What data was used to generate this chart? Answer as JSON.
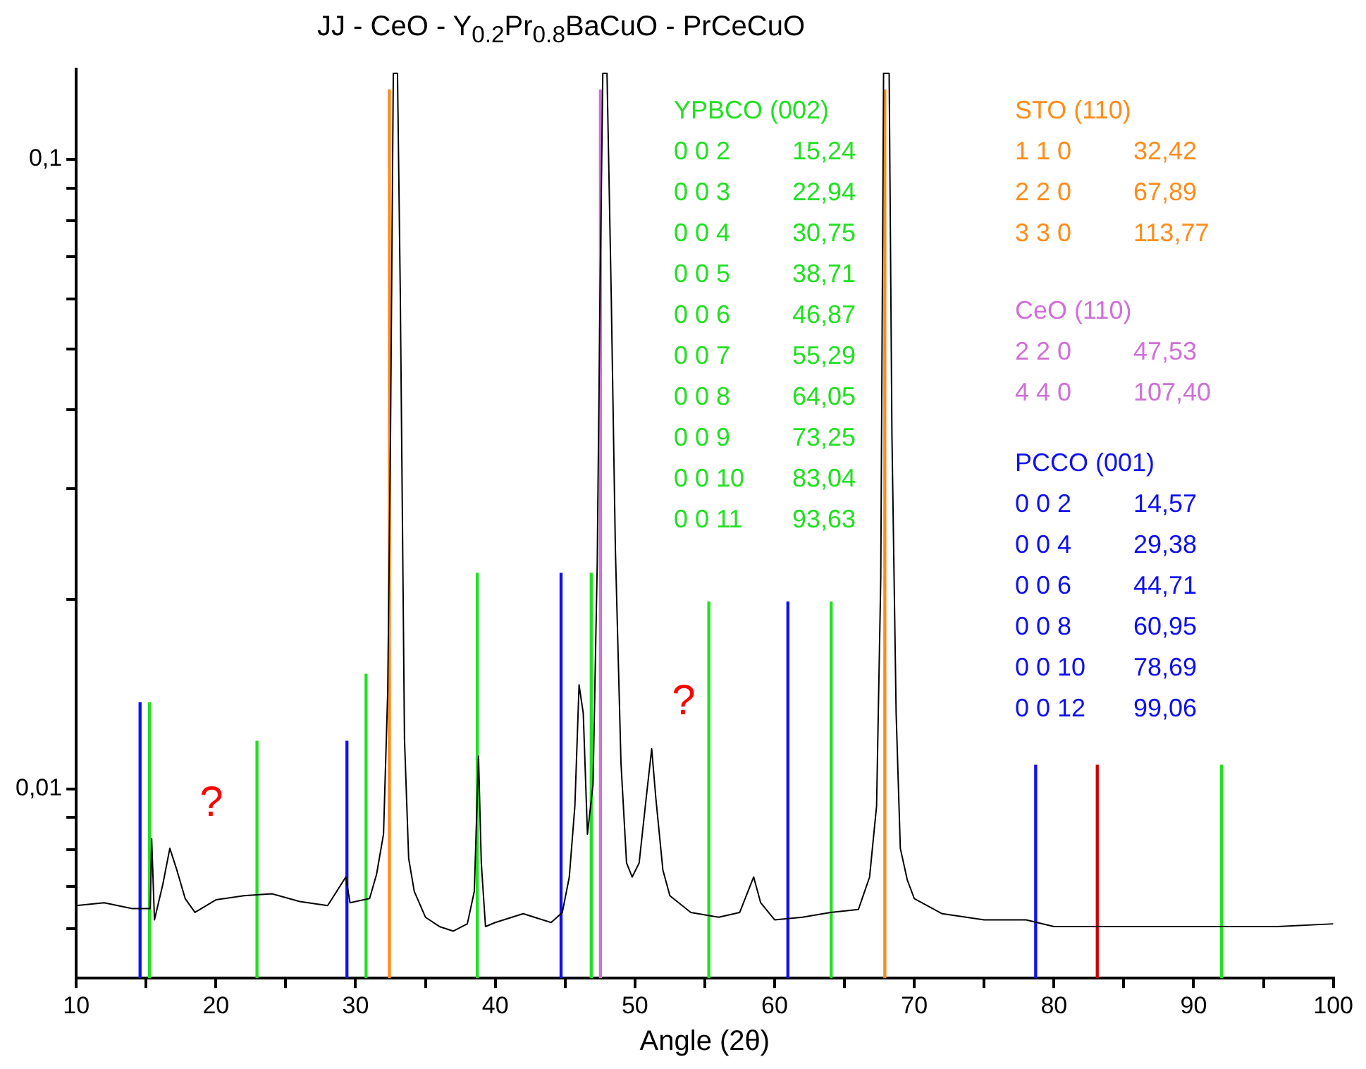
{
  "chart_data": {
    "type": "line",
    "title": "JJ - CeO - Y$_{0.2}$Pr$_{0.8}$BaCuO - PrCeCuO",
    "xlabel": "Angle (2θ)",
    "log": "y",
    "grid": false,
    "legend": false,
    "marker": "none",
    "xlim": [
      10,
      100
    ],
    "xticks": [
      10,
      {
        "value": 15,
        "label": null
      },
      20,
      {
        "value": 25,
        "label": null
      },
      30,
      {
        "value": 35,
        "label": null
      },
      40,
      {
        "value": 45,
        "label": null
      },
      50,
      {
        "value": 55,
        "label": null
      },
      60,
      {
        "value": 65,
        "label": null
      },
      70,
      {
        "value": 75,
        "label": null
      },
      80,
      {
        "value": 85,
        "label": null
      },
      90,
      {
        "value": 95,
        "label": null
      },
      100
    ],
    "ylim": [
      0.005,
      0.139
    ],
    "yticks": [
      {
        "value": 0.006,
        "label": null
      },
      {
        "value": 0.007,
        "label": null
      },
      {
        "value": 0.008,
        "label": null
      },
      {
        "value": 0.009,
        "label": null
      },
      {
        "value": 0.01,
        "label": "0,01"
      },
      {
        "value": 0.02,
        "label": null
      },
      {
        "value": 0.03,
        "label": null
      },
      {
        "value": 0.04,
        "label": null
      },
      {
        "value": 0.05,
        "label": null
      },
      {
        "value": 0.06,
        "label": null
      },
      {
        "value": 0.07,
        "label": null
      },
      {
        "value": 0.08,
        "label": null
      },
      {
        "value": 0.09,
        "label": null
      },
      {
        "value": 0.1,
        "label": "0,1"
      }
    ],
    "series": [
      {
        "name": "YPBCO (002)",
        "type": "bar",
        "color": "#22e022",
        "x": [
          15.24,
          22.94,
          30.75,
          38.71,
          46.87,
          55.29,
          64.05,
          92.0
        ],
        "values": [
          0.0137,
          0.0119,
          0.0152,
          0.022,
          0.022,
          0.0198,
          0.0198,
          0.0109
        ]
      },
      {
        "name": "STO (110)",
        "type": "bar",
        "color": "#ff8c1a",
        "x": [
          32.42,
          67.89
        ],
        "values": [
          0.129,
          0.129
        ]
      },
      {
        "name": "CeO (110)",
        "type": "bar",
        "color": "#d070d8",
        "x": [
          47.53
        ],
        "values": [
          0.129
        ]
      },
      {
        "name": "PCCO (001)",
        "type": "bar",
        "color": "#1010f0",
        "x": [
          14.57,
          29.38,
          44.71,
          60.95,
          78.69
        ],
        "values": [
          0.0137,
          0.0119,
          0.022,
          0.0198,
          0.0109
        ]
      },
      {
        "type": "bar",
        "color": "#cc0000",
        "x": [
          83.1
        ],
        "values": [
          0.0109
        ]
      },
      {
        "color": "#000000",
        "x": [
          10,
          12,
          14,
          15.3,
          15.4,
          15.6,
          16.2,
          16.7,
          17.2,
          17.8,
          18.5,
          20,
          22,
          24,
          26,
          28,
          29.3,
          29.6,
          31,
          31.5,
          32,
          32.3,
          32.5,
          32.7,
          33.0,
          33.2,
          33.5,
          33.8,
          34.2,
          35,
          36,
          37,
          38,
          38.5,
          38.8,
          39.0,
          39.3,
          40,
          42,
          44,
          44.8,
          45.3,
          45.7,
          46.0,
          46.3,
          46.6,
          47.0,
          47.3,
          47.5,
          47.7,
          48.0,
          48.3,
          48.6,
          49,
          49.4,
          49.8,
          50.3,
          50.8,
          51.2,
          51.5,
          52,
          52.5,
          54,
          56,
          57.5,
          58.5,
          59,
          60,
          62,
          64,
          66,
          66.8,
          67.3,
          67.6,
          67.8,
          68.2,
          68.4,
          68.7,
          69.0,
          69.5,
          70,
          72,
          75,
          78,
          80,
          84,
          88,
          92,
          96,
          100
        ],
        "values": [
          0.00652,
          0.00659,
          0.00645,
          0.00645,
          0.00833,
          0.00619,
          0.00705,
          0.00804,
          0.00743,
          0.00669,
          0.00636,
          0.00666,
          0.00676,
          0.00681,
          0.00662,
          0.00652,
          0.00724,
          0.00659,
          0.00669,
          0.00731,
          0.00847,
          0.01426,
          0.0364,
          0.137,
          0.137,
          0.0612,
          0.012,
          0.00775,
          0.00687,
          0.00625,
          0.00604,
          0.00594,
          0.0061,
          0.00687,
          0.01127,
          0.00762,
          0.00604,
          0.00613,
          0.00633,
          0.00613,
          0.00636,
          0.00724,
          0.00939,
          0.01462,
          0.01318,
          0.00847,
          0.01016,
          0.02276,
          0.0612,
          0.137,
          0.137,
          0.0612,
          0.02398,
          0.01099,
          0.00762,
          0.00724,
          0.00762,
          0.00964,
          0.01157,
          0.00964,
          0.00743,
          0.00676,
          0.00636,
          0.00625,
          0.00636,
          0.00724,
          0.00659,
          0.00619,
          0.00625,
          0.00636,
          0.00643,
          0.00724,
          0.00939,
          0.0216,
          0.137,
          0.137,
          0.0364,
          0.01318,
          0.00804,
          0.00716,
          0.00669,
          0.00633,
          0.00619,
          0.00619,
          0.00604,
          0.00604,
          0.00604,
          0.00604,
          0.00604,
          0.0061
        ]
      }
    ],
    "annotations": [
      "0 0 2\t15,24\n0 0 3\t22,94\n0 0 4\t30,75\n0 0 5\t38,71\n0 0 6\t46,87\n0 0 7\t55,29\n0 0 8\t64,05\n0 0 9\t73,25\n0 0 10\t83,04\n0 0 11\t93,63",
      "1 1 0\t32,42\n2 2 0\t67,89\n3 3 0\t113,77",
      "2 2 0\t47,53\n4 4 0\t107,40",
      "0 0 2\t14,57\n0 0 4\t29,38\n0 0 6\t44,71\n0 0 8\t60,95\n0 0 10\t78,69\n0 0 12\t99,06",
      "?",
      "?"
    ]
  }
}
